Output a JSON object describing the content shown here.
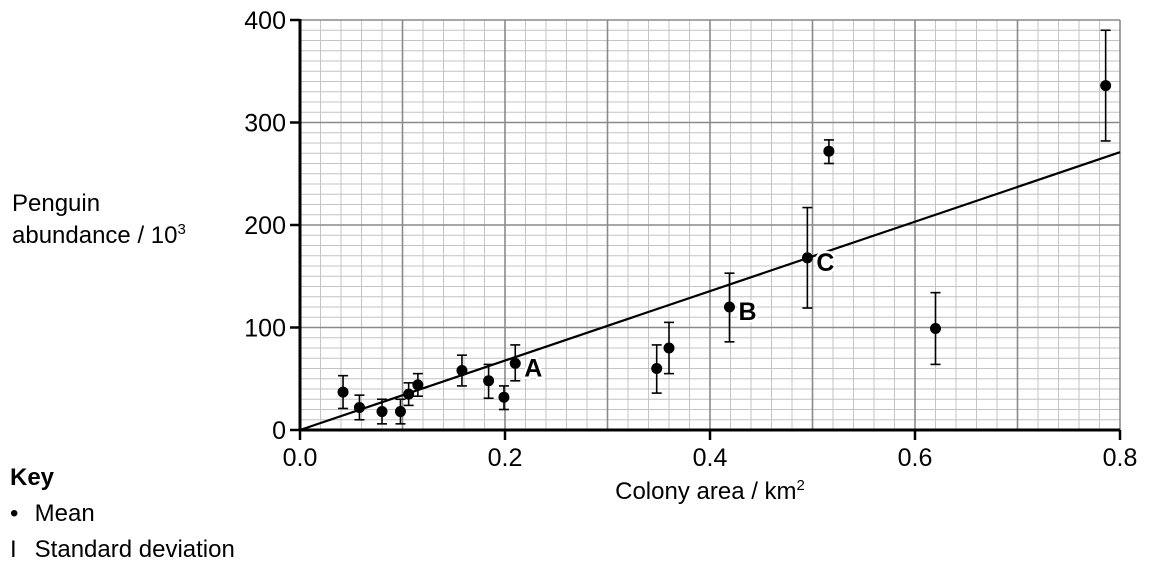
{
  "chart_data": {
    "type": "scatter",
    "ylabel_line1": "Penguin",
    "ylabel_line2": "abundance / 10",
    "ylabel_exp": "3",
    "xlabel": "Colony area / km",
    "xlabel_exp": "2",
    "xlim": [
      0,
      0.8
    ],
    "ylim": [
      0,
      400
    ],
    "x_ticks": [
      "0.0",
      "0.2",
      "0.4",
      "0.6",
      "0.8"
    ],
    "y_ticks": [
      "0",
      "100",
      "200",
      "300",
      "400"
    ],
    "grid": true,
    "points": [
      {
        "x": 0.042,
        "y": 37,
        "sd_low": 21,
        "sd_high": 53
      },
      {
        "x": 0.058,
        "y": 22,
        "sd_low": 10,
        "sd_high": 34
      },
      {
        "x": 0.08,
        "y": 18,
        "sd_low": 6,
        "sd_high": 30
      },
      {
        "x": 0.098,
        "y": 18,
        "sd_low": 6,
        "sd_high": 30
      },
      {
        "x": 0.106,
        "y": 35,
        "sd_low": 24,
        "sd_high": 46
      },
      {
        "x": 0.115,
        "y": 44,
        "sd_low": 33,
        "sd_high": 55
      },
      {
        "x": 0.158,
        "y": 58,
        "sd_low": 43,
        "sd_high": 73
      },
      {
        "x": 0.184,
        "y": 48,
        "sd_low": 31,
        "sd_high": 64
      },
      {
        "x": 0.199,
        "y": 32,
        "sd_low": 20,
        "sd_high": 43
      },
      {
        "x": 0.21,
        "y": 65,
        "sd_low": 48,
        "sd_high": 83
      },
      {
        "x": 0.348,
        "y": 60,
        "sd_low": 36,
        "sd_high": 83
      },
      {
        "x": 0.36,
        "y": 80,
        "sd_low": 55,
        "sd_high": 105
      },
      {
        "x": 0.419,
        "y": 120,
        "sd_low": 86,
        "sd_high": 153
      },
      {
        "x": 0.495,
        "y": 168,
        "sd_low": 119,
        "sd_high": 217
      },
      {
        "x": 0.516,
        "y": 272,
        "sd_low": 260,
        "sd_high": 283
      },
      {
        "x": 0.62,
        "y": 99,
        "sd_low": 64,
        "sd_high": 134
      },
      {
        "x": 0.786,
        "y": 336,
        "sd_low": 282,
        "sd_high": 390
      }
    ],
    "point_labels": [
      {
        "text": "A",
        "x": 0.21,
        "y": 65
      },
      {
        "text": "B",
        "x": 0.419,
        "y": 120
      },
      {
        "text": "C",
        "x": 0.495,
        "y": 168
      }
    ],
    "trend_line": {
      "x": [
        0.0,
        0.8
      ],
      "y": [
        0,
        271
      ]
    },
    "key": {
      "title": "Key",
      "mean_glyph": "•",
      "mean_label": "Mean",
      "sd_glyph": "I",
      "sd_label": "Standard deviation"
    }
  }
}
